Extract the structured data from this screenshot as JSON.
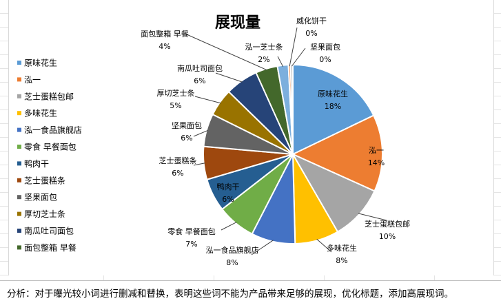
{
  "chart_data": {
    "type": "pie",
    "title": "展现量",
    "legend_position": "left",
    "categories": [
      "原味花生",
      "泓一",
      "芝士蛋糕包邮",
      "多味花生",
      "泓一食品旗舰店",
      "零食 早餐面包",
      "鸭肉干",
      "芝士蛋糕条",
      "坚果面包",
      "厚切芝士条",
      "南瓜吐司面包",
      "面包整箱 早餐",
      "泓一芝士条",
      "威化饼干",
      "坚果面包"
    ],
    "values": [
      18,
      14,
      10,
      8,
      8,
      7,
      6,
      6,
      6,
      5,
      6,
      4,
      2,
      0.4,
      0.4
    ],
    "value_labels": [
      "18%",
      "14%",
      "10%",
      "8%",
      "8%",
      "7%",
      "6%",
      "6%",
      "6%",
      "5%",
      "6%",
      "4%",
      "2%",
      "0%",
      "0%"
    ],
    "colors": [
      "#5b9bd5",
      "#ed7d31",
      "#a5a5a5",
      "#ffc000",
      "#4472c4",
      "#70ad47",
      "#255e91",
      "#9e480e",
      "#636363",
      "#997300",
      "#264478",
      "#43682b",
      "#7cafdd",
      "#f1975a",
      "#b7b7b7"
    ],
    "legend_count": 12
  },
  "analysis": {
    "text": "分析：对于曝光较小词进行删减和替换，表明这些词不能为产品带来足够的展现，优化标题，添加高展现词。"
  }
}
